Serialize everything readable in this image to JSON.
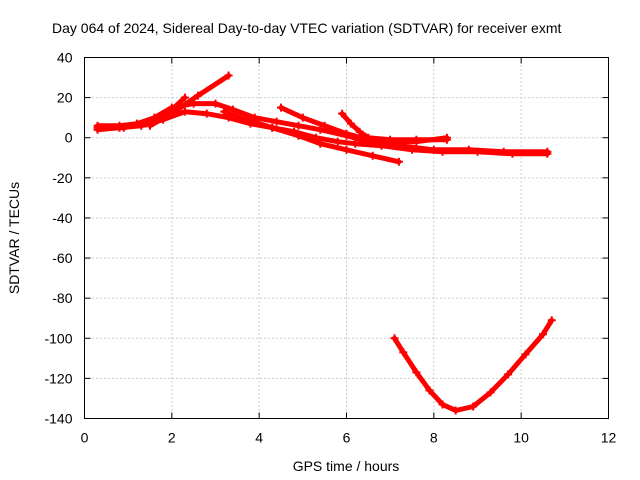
{
  "chart_data": {
    "type": "scatter",
    "title": "Day 064 of 2024, Sidereal Day-to-day VTEC variation (SDTVAR) for receiver exmt",
    "xlabel": "GPS time / hours",
    "ylabel": "SDTVAR / TECUs",
    "xlim": [
      0,
      12
    ],
    "ylim": [
      -140,
      40
    ],
    "xticks": [
      0,
      2,
      4,
      6,
      8,
      10,
      12
    ],
    "yticks": [
      -140,
      -120,
      -100,
      -80,
      -60,
      -40,
      -20,
      0,
      20,
      40
    ],
    "grid": true,
    "color": "#ff0000",
    "series": [
      {
        "name": "track-1",
        "points": [
          [
            0.3,
            4
          ],
          [
            0.8,
            5
          ],
          [
            1.3,
            6
          ],
          [
            1.8,
            9
          ],
          [
            2.3,
            13
          ],
          [
            2.8,
            12
          ],
          [
            3.3,
            10
          ],
          [
            3.8,
            7
          ],
          [
            4.3,
            5
          ],
          [
            4.8,
            3
          ],
          [
            5.3,
            0
          ],
          [
            5.8,
            -2
          ],
          [
            6.2,
            -3
          ],
          [
            6.8,
            -4
          ],
          [
            7.5,
            -6
          ],
          [
            8.2,
            -7
          ],
          [
            9,
            -7
          ],
          [
            9.8,
            -8
          ],
          [
            10.6,
            -8
          ]
        ]
      },
      {
        "name": "track-2",
        "points": [
          [
            0.3,
            6
          ],
          [
            0.8,
            6
          ],
          [
            1.2,
            7
          ],
          [
            1.6,
            10
          ],
          [
            2,
            15
          ],
          [
            2.5,
            17
          ],
          [
            3,
            17
          ],
          [
            3.4,
            14
          ],
          [
            3.9,
            10
          ],
          [
            4.4,
            8
          ],
          [
            4.9,
            6
          ],
          [
            5.4,
            4
          ],
          [
            6,
            1
          ],
          [
            6.5,
            -2
          ],
          [
            7.2,
            -4
          ],
          [
            8,
            -6
          ],
          [
            8.8,
            -6
          ],
          [
            9.6,
            -7
          ],
          [
            10.6,
            -7
          ]
        ]
      },
      {
        "name": "track-3",
        "points": [
          [
            0.3,
            5
          ],
          [
            0.9,
            5
          ],
          [
            1.4,
            7
          ],
          [
            1.9,
            12
          ],
          [
            2.3,
            20
          ]
        ]
      },
      {
        "name": "track-4",
        "points": [
          [
            1.5,
            6
          ],
          [
            2,
            12
          ],
          [
            2.6,
            21
          ],
          [
            3.3,
            31
          ]
        ]
      },
      {
        "name": "track-5",
        "points": [
          [
            3.2,
            13
          ],
          [
            3.7,
            9
          ],
          [
            4.3,
            5
          ],
          [
            4.9,
            1
          ],
          [
            5.4,
            -3
          ],
          [
            6,
            -6
          ],
          [
            6.6,
            -9
          ],
          [
            7.2,
            -12
          ]
        ]
      },
      {
        "name": "track-6",
        "points": [
          [
            4.5,
            15
          ],
          [
            5,
            10
          ],
          [
            5.5,
            6
          ],
          [
            6,
            2
          ],
          [
            6.5,
            -1
          ],
          [
            7,
            -2
          ],
          [
            7.6,
            -2
          ],
          [
            8.3,
            0
          ]
        ]
      },
      {
        "name": "track-7",
        "points": [
          [
            5.9,
            12
          ],
          [
            6.1,
            7
          ],
          [
            6.3,
            3
          ],
          [
            6.5,
            0
          ],
          [
            7,
            -1
          ],
          [
            7.6,
            -1
          ],
          [
            8.3,
            -1
          ]
        ]
      },
      {
        "name": "track-8",
        "points": [
          [
            7.1,
            -100
          ],
          [
            7.3,
            -107
          ],
          [
            7.6,
            -117
          ],
          [
            7.9,
            -126
          ],
          [
            8.2,
            -133
          ],
          [
            8.5,
            -136
          ],
          [
            8.9,
            -134
          ],
          [
            9.3,
            -127
          ],
          [
            9.7,
            -118
          ],
          [
            10.1,
            -108
          ],
          [
            10.5,
            -98
          ],
          [
            10.7,
            -91
          ]
        ]
      }
    ]
  }
}
